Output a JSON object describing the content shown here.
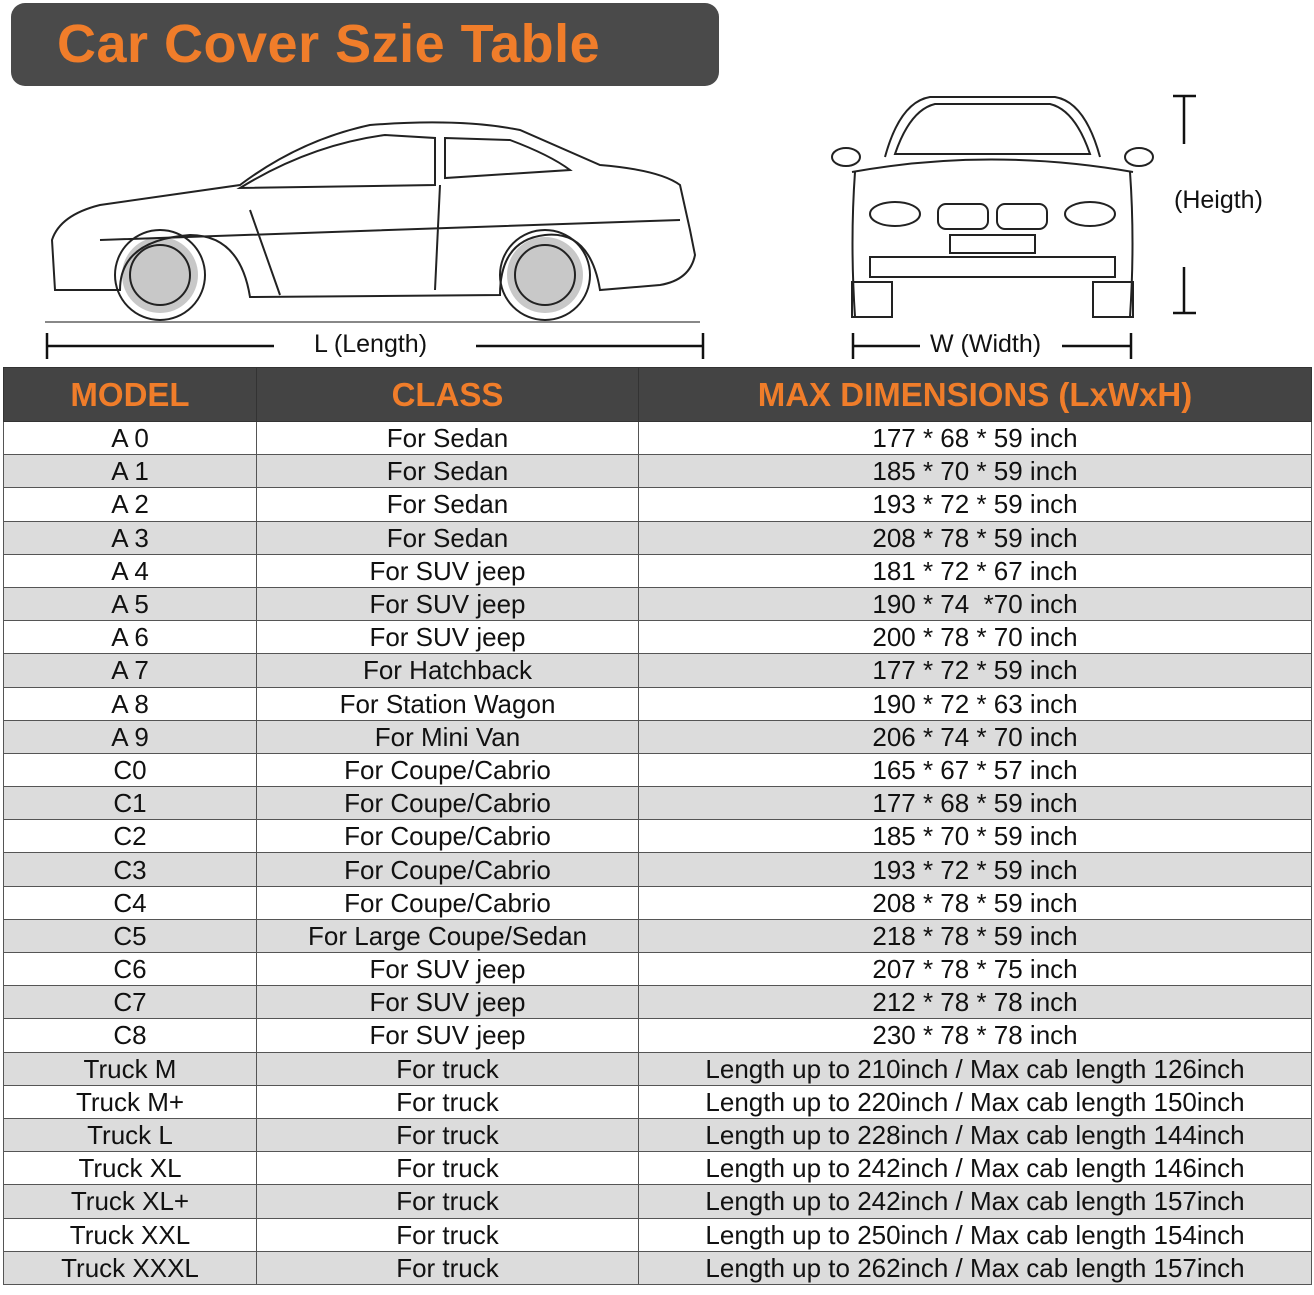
{
  "title": "Car Cover Szie Table",
  "dimensions": {
    "length_label": "L (Length)",
    "width_label": "W (Width)",
    "height_label": "(Heigth)"
  },
  "colors": {
    "accent": "#f07d2a",
    "header_bg": "#444444",
    "alt_row": "#dcdcdc"
  },
  "table": {
    "headers": [
      "MODEL",
      "CLASS",
      "MAX DIMENSIONS (LxWxH)"
    ],
    "rows": [
      [
        "A 0",
        "For Sedan",
        "177 * 68 * 59 inch"
      ],
      [
        "A 1",
        "For Sedan",
        "185 * 70 * 59 inch"
      ],
      [
        "A 2",
        "For Sedan",
        "193 * 72 * 59 inch"
      ],
      [
        "A 3",
        "For Sedan",
        "208 * 78 * 59 inch"
      ],
      [
        "A 4",
        "For SUV jeep",
        "181 * 72 * 67 inch"
      ],
      [
        "A 5",
        "For SUV jeep",
        "190 * 74  *70 inch"
      ],
      [
        "A 6",
        "For SUV jeep",
        "200 * 78 * 70 inch"
      ],
      [
        "A 7",
        "For Hatchback",
        "177 * 72 * 59 inch"
      ],
      [
        "A 8",
        "For Station Wagon",
        "190 * 72 * 63 inch"
      ],
      [
        "A 9",
        "For Mini Van",
        "206 * 74 * 70 inch"
      ],
      [
        "C0",
        "For Coupe/Cabrio",
        "165 * 67 * 57 inch"
      ],
      [
        "C1",
        "For Coupe/Cabrio",
        "177 * 68 * 59 inch"
      ],
      [
        "C2",
        "For Coupe/Cabrio",
        "185 * 70 * 59 inch"
      ],
      [
        "C3",
        "For Coupe/Cabrio",
        "193 * 72 * 59 inch"
      ],
      [
        "C4",
        "For Coupe/Cabrio",
        "208 * 78 * 59 inch"
      ],
      [
        "C5",
        "For Large Coupe/Sedan",
        "218 * 78 * 59 inch"
      ],
      [
        "C6",
        "For SUV jeep",
        "207 * 78 * 75 inch"
      ],
      [
        "C7",
        "For SUV jeep",
        "212 * 78 * 78 inch"
      ],
      [
        "C8",
        "For SUV jeep",
        "230 * 78 * 78 inch"
      ],
      [
        "Truck M",
        "For truck",
        "Length up to 210inch / Max cab length 126inch"
      ],
      [
        "Truck M+",
        "For truck",
        "Length up to 220inch / Max cab length 150inch"
      ],
      [
        "Truck L",
        "For truck",
        "Length up to 228inch / Max cab length 144inch"
      ],
      [
        "Truck XL",
        "For truck",
        "Length up to 242inch / Max cab length 146inch"
      ],
      [
        "Truck XL+",
        "For truck",
        "Length up to 242inch / Max cab length 157inch"
      ],
      [
        "Truck XXL",
        "For truck",
        "Length up to 250inch / Max cab length 154inch"
      ],
      [
        "Truck XXXL",
        "For truck",
        "Length up to 262inch / Max cab length 157inch"
      ]
    ]
  }
}
